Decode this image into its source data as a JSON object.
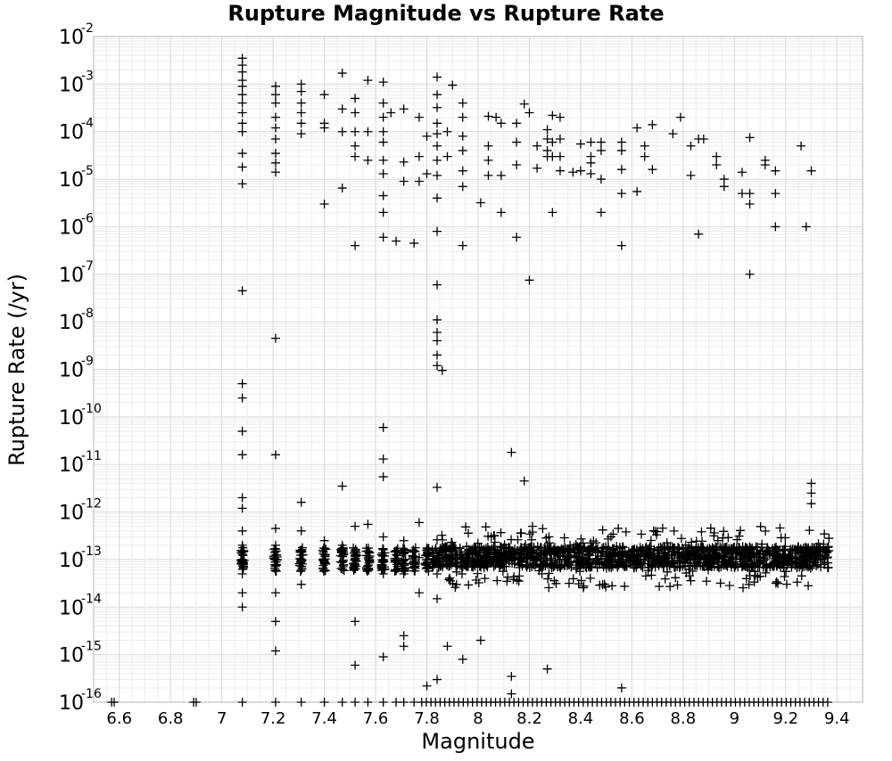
{
  "chart_data": {
    "type": "scatter",
    "title": "Rupture Magnitude vs Rupture Rate",
    "xlabel": "Magnitude",
    "ylabel": "Rupture Rate (/yr)",
    "xlim": [
      6.5,
      9.5
    ],
    "ylim": [
      1e-16,
      0.01
    ],
    "yscale": "log",
    "grid": true,
    "marker": "plus",
    "x_ticks": [
      "6.6",
      "6.8",
      "7",
      "7.2",
      "7.4",
      "7.6",
      "7.8",
      "8",
      "8.2",
      "8.4",
      "8.6",
      "8.8",
      "9",
      "9.2",
      "9.4"
    ],
    "y_ticks": [
      {
        "base": "10",
        "exp": "-2"
      },
      {
        "base": "10",
        "exp": "-3"
      },
      {
        "base": "10",
        "exp": "-4"
      },
      {
        "base": "10",
        "exp": "-5"
      },
      {
        "base": "10",
        "exp": "-6"
      },
      {
        "base": "10",
        "exp": "-7"
      },
      {
        "base": "10",
        "exp": "-8"
      },
      {
        "base": "10",
        "exp": "-9"
      },
      {
        "base": "10",
        "exp": "-10"
      },
      {
        "base": "10",
        "exp": "-11"
      },
      {
        "base": "10",
        "exp": "-12"
      },
      {
        "base": "10",
        "exp": "-13"
      },
      {
        "base": "10",
        "exp": "-14"
      },
      {
        "base": "10",
        "exp": "-15"
      },
      {
        "base": "10",
        "exp": "-16"
      }
    ],
    "series": [
      {
        "points": [
          [
            7.08,
            0.0035
          ],
          [
            7.08,
            0.0025
          ],
          [
            7.08,
            0.0018
          ],
          [
            7.08,
            0.0012
          ],
          [
            7.08,
            0.0009
          ],
          [
            7.08,
            0.0006
          ],
          [
            7.08,
            0.0004
          ],
          [
            7.08,
            0.00025
          ],
          [
            7.08,
            0.00015
          ],
          [
            7.08,
            0.0001
          ],
          [
            7.08,
            3.5e-05
          ],
          [
            7.08,
            1.8e-05
          ],
          [
            7.08,
            8e-06
          ],
          [
            7.08,
            4.5e-08
          ],
          [
            7.08,
            5e-10
          ],
          [
            7.08,
            2.5e-10
          ],
          [
            7.08,
            5e-11
          ],
          [
            7.08,
            1.6e-11
          ],
          [
            7.08,
            2e-12
          ],
          [
            7.08,
            1.2e-12
          ],
          [
            7.08,
            4e-13
          ],
          [
            7.08,
            2e-13
          ],
          [
            7.08,
            1.3e-13
          ],
          [
            7.08,
            1e-13
          ],
          [
            7.08,
            8e-14
          ],
          [
            7.08,
            5e-14
          ],
          [
            7.08,
            2e-14
          ],
          [
            7.08,
            1e-14
          ],
          [
            7.21,
            0.0009
          ],
          [
            7.21,
            0.0006
          ],
          [
            7.21,
            0.0004
          ],
          [
            7.21,
            0.0002
          ],
          [
            7.21,
            0.00012
          ],
          [
            7.21,
            7e-05
          ],
          [
            7.21,
            3.5e-05
          ],
          [
            7.21,
            2.2e-05
          ],
          [
            7.21,
            1.4e-05
          ],
          [
            7.21,
            4.5e-09
          ],
          [
            7.21,
            1.6e-11
          ],
          [
            7.21,
            4.5e-13
          ],
          [
            7.21,
            2e-13
          ],
          [
            7.21,
            1e-13
          ],
          [
            7.21,
            6e-14
          ],
          [
            7.21,
            2e-14
          ],
          [
            7.21,
            5e-15
          ],
          [
            7.21,
            1.2e-15
          ],
          [
            7.31,
            0.001
          ],
          [
            7.31,
            0.0007
          ],
          [
            7.31,
            0.0004
          ],
          [
            7.31,
            0.00025
          ],
          [
            7.31,
            0.00015
          ],
          [
            7.31,
            9e-05
          ],
          [
            7.31,
            1.6e-12
          ],
          [
            7.31,
            4e-13
          ],
          [
            7.31,
            1.5e-13
          ],
          [
            7.31,
            1e-13
          ],
          [
            7.31,
            6e-14
          ],
          [
            7.31,
            3e-14
          ],
          [
            7.4,
            0.0006
          ],
          [
            7.4,
            0.00015
          ],
          [
            7.4,
            0.00012
          ],
          [
            7.4,
            3e-06
          ],
          [
            7.4,
            2.5e-13
          ],
          [
            7.4,
            1e-13
          ],
          [
            7.4,
            6e-14
          ],
          [
            7.47,
            0.0017
          ],
          [
            7.47,
            0.0003
          ],
          [
            7.47,
            0.0001
          ],
          [
            7.47,
            6.5e-06
          ],
          [
            7.47,
            3.5e-12
          ],
          [
            7.47,
            2e-13
          ],
          [
            7.47,
            9e-14
          ],
          [
            7.52,
            0.0005
          ],
          [
            7.52,
            0.00025
          ],
          [
            7.52,
            0.0001
          ],
          [
            7.52,
            5e-05
          ],
          [
            7.52,
            3e-05
          ],
          [
            7.52,
            4e-07
          ],
          [
            7.52,
            5e-13
          ],
          [
            7.52,
            1.5e-13
          ],
          [
            7.52,
            8e-14
          ],
          [
            7.52,
            5e-15
          ],
          [
            7.52,
            6e-16
          ],
          [
            7.57,
            0.0012
          ],
          [
            7.57,
            0.0001
          ],
          [
            7.57,
            2.5e-05
          ],
          [
            7.57,
            5.5e-13
          ],
          [
            7.57,
            1.2e-13
          ],
          [
            7.63,
            0.0011
          ],
          [
            7.63,
            0.0004
          ],
          [
            7.63,
            0.0002
          ],
          [
            7.63,
            0.0001
          ],
          [
            7.63,
            6e-05
          ],
          [
            7.63,
            2.5e-05
          ],
          [
            7.63,
            1.3e-05
          ],
          [
            7.63,
            4.5e-06
          ],
          [
            7.63,
            2e-06
          ],
          [
            7.63,
            6e-07
          ],
          [
            7.63,
            6e-11
          ],
          [
            7.63,
            1.3e-11
          ],
          [
            7.63,
            5.5e-12
          ],
          [
            7.63,
            3e-13
          ],
          [
            7.63,
            1e-13
          ],
          [
            7.63,
            5e-14
          ],
          [
            7.63,
            9e-16
          ],
          [
            7.66,
            0.00025
          ],
          [
            7.68,
            5e-07
          ],
          [
            7.71,
            0.0003
          ],
          [
            7.71,
            2.3e-05
          ],
          [
            7.71,
            9e-06
          ],
          [
            7.71,
            2.5e-13
          ],
          [
            7.71,
            1e-13
          ],
          [
            7.71,
            5e-14
          ],
          [
            7.71,
            2.5e-15
          ],
          [
            7.71,
            1.5e-15
          ],
          [
            7.75,
            4.5e-07
          ],
          [
            7.77,
            0.0002
          ],
          [
            7.77,
            3e-05
          ],
          [
            7.77,
            9e-06
          ],
          [
            7.77,
            6e-13
          ],
          [
            7.77,
            1.1e-13
          ],
          [
            7.77,
            2e-14
          ],
          [
            7.8,
            8e-05
          ],
          [
            7.8,
            1.3e-05
          ],
          [
            7.8,
            2.2e-16
          ],
          [
            7.84,
            0.0014
          ],
          [
            7.84,
            0.0006
          ],
          [
            7.84,
            0.00032
          ],
          [
            7.84,
            0.00015
          ],
          [
            7.84,
            9e-05
          ],
          [
            7.84,
            5e-05
          ],
          [
            7.84,
            2.5e-05
          ],
          [
            7.84,
            1.2e-05
          ],
          [
            7.84,
            4e-06
          ],
          [
            7.84,
            8e-07
          ],
          [
            7.84,
            6e-08
          ],
          [
            7.84,
            1.1e-08
          ],
          [
            7.84,
            6e-09
          ],
          [
            7.84,
            4e-09
          ],
          [
            7.84,
            2e-09
          ],
          [
            7.84,
            1.2e-09
          ],
          [
            7.84,
            3.3e-12
          ],
          [
            7.84,
            2.6e-13
          ],
          [
            7.84,
            1.2e-13
          ],
          [
            7.84,
            5e-14
          ],
          [
            7.84,
            1.5e-14
          ],
          [
            7.84,
            3e-16
          ],
          [
            7.86,
            9.5e-10
          ],
          [
            7.88,
            0.0001
          ],
          [
            7.88,
            3e-05
          ],
          [
            7.88,
            1.5e-15
          ],
          [
            7.9,
            0.00095
          ],
          [
            7.9,
            2e-13
          ],
          [
            7.9,
            1e-13
          ],
          [
            7.94,
            0.0004
          ],
          [
            7.94,
            0.0002
          ],
          [
            7.94,
            8e-05
          ],
          [
            7.94,
            4e-05
          ],
          [
            7.94,
            1.5e-05
          ],
          [
            7.94,
            7e-06
          ],
          [
            7.94,
            4e-07
          ],
          [
            7.94,
            1e-13
          ],
          [
            7.94,
            8e-16
          ],
          [
            8.01,
            3.2e-06
          ],
          [
            8.01,
            1.2e-13
          ],
          [
            8.01,
            2e-15
          ],
          [
            8.04,
            0.00021
          ],
          [
            8.04,
            5e-05
          ],
          [
            8.04,
            2.5e-05
          ],
          [
            8.04,
            1.2e-05
          ],
          [
            8.07,
            0.0002
          ],
          [
            8.09,
            1.2e-05
          ],
          [
            8.09,
            2e-06
          ],
          [
            8.09,
            0.00015
          ],
          [
            8.13,
            1.8e-11
          ],
          [
            8.13,
            3.5e-16
          ],
          [
            8.13,
            1.5e-16
          ],
          [
            8.15,
            0.00015
          ],
          [
            8.15,
            6e-05
          ],
          [
            8.15,
            2e-05
          ],
          [
            8.15,
            6e-07
          ],
          [
            8.18,
            0.00038
          ],
          [
            8.18,
            4.5e-12
          ],
          [
            8.2,
            7.5e-08
          ],
          [
            8.2,
            0.00025
          ],
          [
            8.23,
            5e-05
          ],
          [
            8.23,
            1.7e-05
          ],
          [
            8.27,
            0.00011
          ],
          [
            8.27,
            7e-05
          ],
          [
            8.27,
            4e-05
          ],
          [
            8.27,
            3e-05
          ],
          [
            8.27,
            2e-13
          ],
          [
            8.27,
            5e-16
          ],
          [
            8.29,
            0.00022
          ],
          [
            8.29,
            6e-05
          ],
          [
            8.29,
            2e-06
          ],
          [
            8.29,
            3e-05
          ],
          [
            8.32,
            0.0002
          ],
          [
            8.32,
            7e-05
          ],
          [
            8.32,
            3e-05
          ],
          [
            8.32,
            1.5e-05
          ],
          [
            8.37,
            1.4e-05
          ],
          [
            8.4,
            5.5e-05
          ],
          [
            8.4,
            1.5e-05
          ],
          [
            8.44,
            6e-05
          ],
          [
            8.44,
            3e-05
          ],
          [
            8.44,
            2.2e-05
          ],
          [
            8.44,
            1.3e-05
          ],
          [
            8.48,
            6e-05
          ],
          [
            8.48,
            2e-06
          ],
          [
            8.48,
            4e-05
          ],
          [
            8.48,
            1e-05
          ],
          [
            8.56,
            6e-05
          ],
          [
            8.56,
            4e-05
          ],
          [
            8.56,
            1.6e-05
          ],
          [
            8.56,
            5e-06
          ],
          [
            8.56,
            4e-07
          ],
          [
            8.56,
            2e-16
          ],
          [
            8.62,
            0.00012
          ],
          [
            8.62,
            5.5e-06
          ],
          [
            8.65,
            5e-05
          ],
          [
            8.65,
            3e-05
          ],
          [
            8.68,
            0.00014
          ],
          [
            8.68,
            1.6e-05
          ],
          [
            8.76,
            9e-05
          ],
          [
            8.79,
            0.0002
          ],
          [
            8.83,
            5e-05
          ],
          [
            8.83,
            1.2e-05
          ],
          [
            8.86,
            7e-05
          ],
          [
            8.86,
            7e-07
          ],
          [
            8.88,
            7e-05
          ],
          [
            8.93,
            3e-05
          ],
          [
            8.93,
            2e-05
          ],
          [
            8.96,
            1e-05
          ],
          [
            8.96,
            7e-06
          ],
          [
            9.03,
            5e-06
          ],
          [
            9.03,
            1.4e-05
          ],
          [
            9.06,
            1e-07
          ],
          [
            9.06,
            7.5e-05
          ],
          [
            9.06,
            5e-06
          ],
          [
            9.06,
            3e-06
          ],
          [
            9.12,
            2e-05
          ],
          [
            9.12,
            2.5e-05
          ],
          [
            9.16,
            1e-06
          ],
          [
            9.16,
            5e-06
          ],
          [
            9.16,
            1.5e-05
          ],
          [
            9.26,
            5e-05
          ],
          [
            9.28,
            1e-06
          ],
          [
            9.3,
            1.5e-05
          ],
          [
            9.3,
            4e-12
          ],
          [
            9.3,
            2.5e-12
          ],
          [
            9.3,
            1.5e-12
          ]
        ]
      }
    ]
  }
}
